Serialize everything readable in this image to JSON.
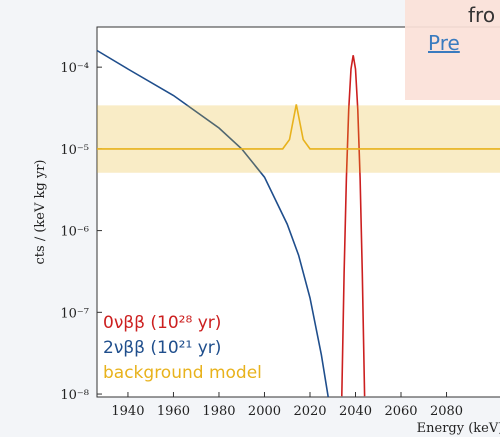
{
  "chart_data": {
    "type": "line",
    "log_y": true,
    "xlabel": "Energy (keV)",
    "ylabel": "cts / (keV kg yr)",
    "xlim": [
      1926.4,
      2103.5
    ],
    "xticks": [
      1940,
      1960,
      1980,
      2000,
      2020,
      2040,
      2060,
      2080
    ],
    "ylim": [
      9.2e-09,
      0.00031
    ],
    "yticks": [
      {
        "value": 1e-08,
        "label": "10⁻⁸"
      },
      {
        "value": 1e-07,
        "label": "10⁻⁷"
      },
      {
        "value": 1e-06,
        "label": "10⁻⁶"
      },
      {
        "value": 1e-05,
        "label": "10⁻⁵"
      },
      {
        "value": 0.0001,
        "label": "10⁻⁴"
      }
    ],
    "series": [
      {
        "name": "0νββ (10²⁸ yr)",
        "color": "#cc1f1f",
        "x": [
          2034,
          2035,
          2036,
          2037,
          2038,
          2039,
          2040,
          2041,
          2042,
          2043,
          2044
        ],
        "values": [
          9.4e-09,
          3e-07,
          4.4e-06,
          3e-05,
          9.5e-05,
          0.00014,
          9.5e-05,
          3e-05,
          4.4e-06,
          3e-07,
          9.4e-09
        ]
      },
      {
        "name": "2νββ (10²¹ yr)",
        "color": "#1f4e8c",
        "x": [
          1926.4,
          1940,
          1960,
          1980,
          1990,
          2000,
          2010,
          2015,
          2020,
          2025,
          2028
        ],
        "values": [
          0.00016,
          9.5e-05,
          4.5e-05,
          1.8e-05,
          1e-05,
          4.5e-06,
          1.2e-06,
          5e-07,
          1.5e-07,
          3e-08,
          9.2e-09
        ]
      },
      {
        "name": "background model",
        "color": "#e8b21c",
        "x": [
          1926.4,
          2008,
          2011,
          2014,
          2017,
          2020,
          2103.5
        ],
        "values": [
          1e-05,
          1e-05,
          1.3e-05,
          3.5e-05,
          1.3e-05,
          1e-05,
          1e-05
        ],
        "band_upper": [
          3.4e-05,
          3.4e-05,
          3.4e-05,
          3.4e-05,
          3.4e-05,
          3.4e-05,
          3.4e-05
        ],
        "band_lower": [
          5.1e-06,
          5.1e-06,
          5.1e-06,
          5.1e-06,
          5.1e-06,
          5.1e-06,
          5.1e-06
        ]
      }
    ]
  },
  "overlay": {
    "line1": "fro",
    "link": "Pre"
  }
}
